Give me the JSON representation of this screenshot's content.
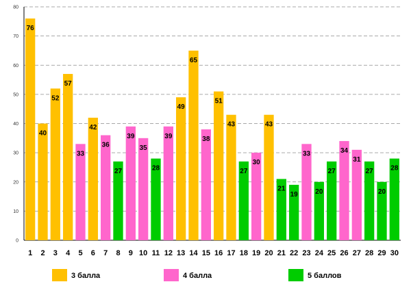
{
  "chart_data": {
    "type": "bar",
    "title": "",
    "xlabel": "",
    "ylabel": "",
    "ylim": [
      0,
      80
    ],
    "yticks": [
      "0",
      "10",
      "20",
      "30",
      "40",
      "50",
      "60",
      "70",
      "80"
    ],
    "grid": true,
    "categories": [
      "1",
      "2",
      "3",
      "4",
      "5",
      "6",
      "7",
      "8",
      "9",
      "10",
      "11",
      "12",
      "13",
      "14",
      "15",
      "16",
      "17",
      "18",
      "19",
      "20",
      "21",
      "22",
      "23",
      "24",
      "25",
      "26",
      "27",
      "28",
      "29",
      "30"
    ],
    "values": [
      76,
      40,
      52,
      57,
      33,
      42,
      36,
      27,
      39,
      35,
      28,
      39,
      49,
      65,
      38,
      51,
      43,
      27,
      30,
      43,
      21,
      19,
      33,
      20,
      27,
      34,
      31,
      27,
      20,
      28
    ],
    "value_labels": [
      "76",
      "40",
      "52",
      "57",
      "33",
      "42",
      "36",
      "27",
      "39",
      "35",
      "28",
      "39",
      "49",
      "65",
      "38",
      "51",
      "43",
      "27",
      "30",
      "43",
      "21",
      "19",
      "33",
      "20",
      "27",
      "34",
      "31",
      "27",
      "20",
      "28"
    ],
    "groups": [
      "g3",
      "g3",
      "g3",
      "g3",
      "g4",
      "g3",
      "g4",
      "g5",
      "g4",
      "g4",
      "g5",
      "g4",
      "g3",
      "g3",
      "g4",
      "g3",
      "g3",
      "g5",
      "g4",
      "g3",
      "g5",
      "g5",
      "g4",
      "g5",
      "g5",
      "g4",
      "g4",
      "g5",
      "g5",
      "g5"
    ],
    "legend_position": "bottom",
    "legend": [
      {
        "id": "g3",
        "label": "3 балла",
        "color": "#FFC000"
      },
      {
        "id": "g4",
        "label": "4 балла",
        "color": "#FF66CC"
      },
      {
        "id": "g5",
        "label": "5 баллов",
        "color": "#00CC00"
      }
    ]
  }
}
